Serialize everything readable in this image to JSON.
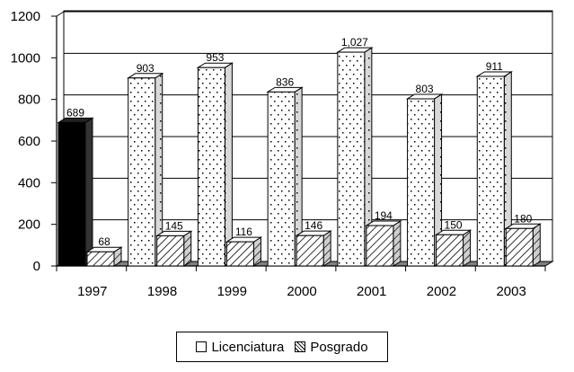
{
  "chart_data": {
    "type": "bar",
    "categories": [
      "1997",
      "1998",
      "1999",
      "2000",
      "2001",
      "2002",
      "2003"
    ],
    "series": [
      {
        "name": "Licenciatura",
        "values": [
          689,
          903,
          953,
          836,
          1027,
          803,
          911
        ],
        "labels": [
          "689",
          "903",
          "953",
          "836",
          "1,027",
          "803",
          "911"
        ]
      },
      {
        "name": "Posgrado",
        "values": [
          68,
          145,
          116,
          146,
          194,
          150,
          180
        ],
        "labels": [
          "68",
          "145",
          "116",
          "146",
          "194",
          "150",
          "180"
        ]
      }
    ],
    "y_ticks": [
      "0",
      "200",
      "400",
      "600",
      "800",
      "1000",
      "1200"
    ],
    "ylim": [
      0,
      1200
    ],
    "grid": true,
    "style": "3d",
    "legend_position": "bottom",
    "colors": {
      "first_bar": "#000000",
      "licenciatura_fill": "dotted-white",
      "posgrado_fill": "hatched",
      "floor": "#808080"
    }
  },
  "legend": {
    "licenciatura": "Licenciatura",
    "posgrado": "Posgrado"
  }
}
